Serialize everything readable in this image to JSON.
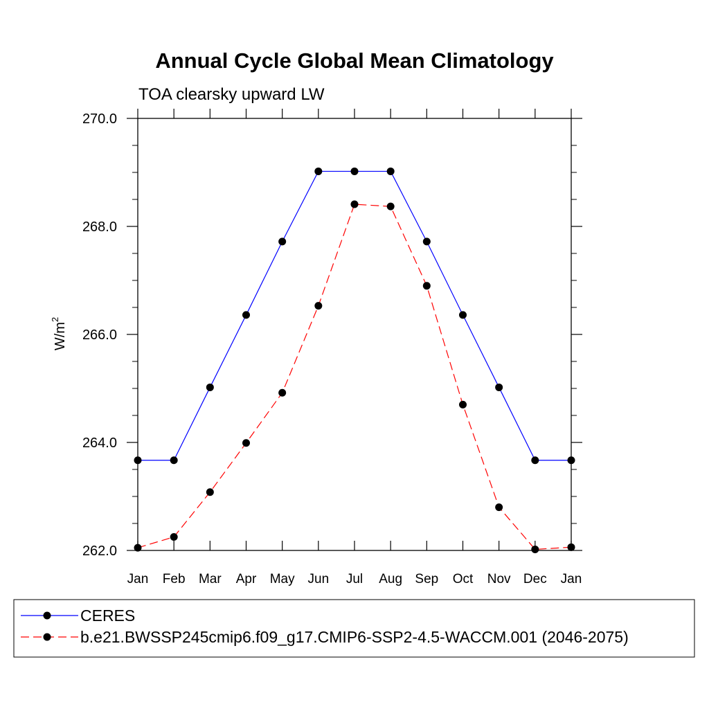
{
  "chart_data": {
    "type": "line",
    "title": "Annual Cycle Global Mean Climatology",
    "subtitle": "TOA clearsky upward LW",
    "ylabel": "W/m",
    "ylabel_sup": "2",
    "ylim": [
      262.0,
      270.0
    ],
    "y_ticks": [
      "262.0",
      "264.0",
      "266.0",
      "268.0",
      "270.0"
    ],
    "categories": [
      "Jan",
      "Feb",
      "Mar",
      "Apr",
      "May",
      "Jun",
      "Jul",
      "Aug",
      "Sep",
      "Oct",
      "Nov",
      "Dec",
      "Jan"
    ],
    "grid": false,
    "legend_position": "bottom",
    "series": [
      {
        "name": "CERES",
        "color": "#0000ff",
        "line_style": "solid",
        "values": [
          263.67,
          263.67,
          265.02,
          266.36,
          267.72,
          269.02,
          269.02,
          269.02,
          267.72,
          266.36,
          265.02,
          263.67,
          263.67
        ]
      },
      {
        "name": "b.e21.BWSSP245cmip6.f09_g17.CMIP6-SSP2-4.5-WACCM.001 (2046-2075)",
        "color": "#ff0000",
        "line_style": "dashed",
        "values": [
          262.05,
          262.25,
          263.08,
          263.99,
          264.92,
          266.53,
          268.41,
          268.37,
          266.9,
          264.7,
          262.8,
          262.02,
          262.06
        ]
      }
    ]
  }
}
